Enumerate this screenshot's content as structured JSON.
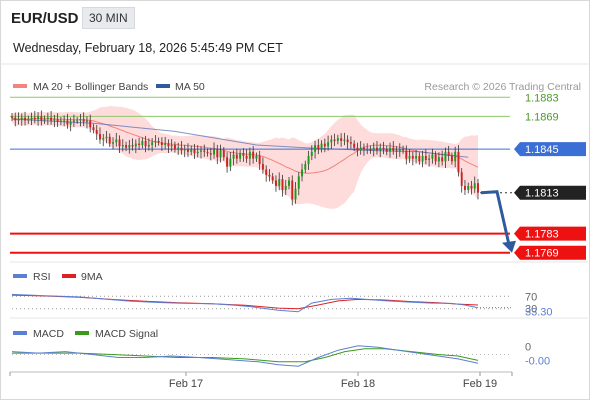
{
  "header": {
    "symbol": "EUR/USD",
    "timeframe": "30 MIN",
    "datetime": "Wednesday, February 18, 2026 5:45:49 PM CET"
  },
  "colors": {
    "bb_band": "#ffd0d0",
    "ma20": "#f4837d",
    "ma50": "#4a6ab0",
    "candle_up": "#1a9a1a",
    "candle_down": "#cc2222",
    "resistance": "#8dc86a",
    "current": "#3b6fd6",
    "support": "#ee1111",
    "rsi": "#5b7fd4",
    "rsi_ma": "#dd2222",
    "macd": "#5b7fd4",
    "macd_signal": "#3a9a1a",
    "arrow": "#2e5a9e"
  },
  "chart_data": [
    {
      "type": "candlestick",
      "title": "EUR/USD",
      "legend": [
        {
          "name": "MA 20 + Bollinger Bands",
          "color": "#f4837d"
        },
        {
          "name": "MA 50",
          "color": "#2e5a9e"
        }
      ],
      "watermark": "Research © 2026 Trading Central",
      "x_labels": [
        "Feb 17",
        "Feb 18",
        "Feb 19"
      ],
      "ylim": [
        1.176,
        1.1892
      ],
      "levels": [
        {
          "value": 1.1883,
          "label": "1.1883",
          "kind": "resistance"
        },
        {
          "value": 1.1869,
          "label": "1.1869",
          "kind": "resistance"
        },
        {
          "value": 1.1845,
          "label": "1.1845",
          "kind": "pivot"
        },
        {
          "value": 1.1813,
          "label": "1.1813",
          "kind": "last"
        },
        {
          "value": 1.1783,
          "label": "1.1783",
          "kind": "support"
        },
        {
          "value": 1.1769,
          "label": "1.1769",
          "kind": "support"
        }
      ],
      "close_series": [
        1.1868,
        1.1866,
        1.1867,
        1.1868,
        1.1866,
        1.1867,
        1.1868,
        1.1867,
        1.1869,
        1.1866,
        1.1867,
        1.1868,
        1.1866,
        1.1867,
        1.1865,
        1.1866,
        1.1866,
        1.1863,
        1.1865,
        1.1866,
        1.1866,
        1.1867,
        1.1865,
        1.1866,
        1.1861,
        1.1859,
        1.1856,
        1.1852,
        1.1853,
        1.1854,
        1.1849,
        1.185,
        1.1852,
        1.1847,
        1.1848,
        1.1846,
        1.1848,
        1.1847,
        1.1849,
        1.1848,
        1.1851,
        1.1847,
        1.1848,
        1.185,
        1.1851,
        1.185,
        1.1848,
        1.1849,
        1.1847,
        1.1848,
        1.1845,
        1.1846,
        1.1844,
        1.1845,
        1.1843,
        1.1845,
        1.1842,
        1.1843,
        1.1844,
        1.1843,
        1.1842,
        1.1841,
        1.1845,
        1.1839,
        1.1844,
        1.1839,
        1.1832,
        1.1838,
        1.1841,
        1.1838,
        1.1842,
        1.184,
        1.1838,
        1.1843,
        1.1838,
        1.184,
        1.1834,
        1.183,
        1.1826,
        1.1825,
        1.1822,
        1.1818,
        1.1823,
        1.1815,
        1.1818,
        1.1822,
        1.1808,
        1.1816,
        1.1825,
        1.183,
        1.1834,
        1.184,
        1.1843,
        1.1848,
        1.1845,
        1.1849,
        1.1847,
        1.185,
        1.1852,
        1.1851,
        1.1853,
        1.1851,
        1.1852,
        1.185,
        1.1849,
        1.1846,
        1.1844,
        1.1846,
        1.1845,
        1.1845,
        1.1844,
        1.1846,
        1.1844,
        1.1846,
        1.1845,
        1.1843,
        1.1846,
        1.1844,
        1.1843,
        1.1845,
        1.1844,
        1.1838,
        1.184,
        1.1838,
        1.184,
        1.1836,
        1.184,
        1.1837,
        1.1838,
        1.1841,
        1.1836,
        1.1839,
        1.1836,
        1.1843,
        1.184,
        1.1836,
        1.1843,
        1.1828,
        1.1818,
        1.1815,
        1.1818,
        1.1816,
        1.182,
        1.1813
      ],
      "ma50_points": [
        [
          0,
          1.1867
        ],
        [
          25,
          1.1864
        ],
        [
          50,
          1.1858
        ],
        [
          75,
          1.1848
        ],
        [
          90,
          1.1846
        ],
        [
          110,
          1.1844
        ],
        [
          125,
          1.1843
        ],
        [
          140,
          1.1839
        ]
      ]
    },
    {
      "type": "line",
      "title": "RSI",
      "legend": [
        {
          "name": "RSI",
          "color": "#5b7fd4"
        },
        {
          "name": "9MA",
          "color": "#dd2222"
        }
      ],
      "ylim": [
        0,
        100
      ],
      "levels": [
        70,
        30
      ],
      "tick_labels": [
        "70",
        "30"
      ],
      "current_label": "33.30",
      "rsi_points": [
        [
          0,
          76
        ],
        [
          10,
          72
        ],
        [
          20,
          68
        ],
        [
          28,
          61
        ],
        [
          36,
          54
        ],
        [
          44,
          50
        ],
        [
          52,
          47
        ],
        [
          60,
          46
        ],
        [
          66,
          42
        ],
        [
          72,
          36
        ],
        [
          80,
          25
        ],
        [
          86,
          20
        ],
        [
          90,
          48
        ],
        [
          96,
          60
        ],
        [
          102,
          64
        ],
        [
          110,
          57
        ],
        [
          118,
          52
        ],
        [
          126,
          48
        ],
        [
          132,
          47
        ],
        [
          136,
          42
        ],
        [
          140,
          33.3
        ]
      ],
      "ma_points": [
        [
          0,
          74
        ],
        [
          10,
          71
        ],
        [
          20,
          67
        ],
        [
          30,
          60
        ],
        [
          40,
          54
        ],
        [
          50,
          49
        ],
        [
          60,
          46
        ],
        [
          70,
          41
        ],
        [
          80,
          32
        ],
        [
          86,
          30
        ],
        [
          92,
          42
        ],
        [
          98,
          55
        ],
        [
          104,
          60
        ],
        [
          112,
          58
        ],
        [
          120,
          53
        ],
        [
          128,
          49
        ],
        [
          134,
          45
        ],
        [
          140,
          42
        ]
      ]
    },
    {
      "type": "line",
      "title": "MACD",
      "legend": [
        {
          "name": "MACD",
          "color": "#5b7fd4"
        },
        {
          "name": "MACD Signal",
          "color": "#3a9a1a"
        }
      ],
      "ylim": [
        -0.0012,
        0.001
      ],
      "levels": [
        0
      ],
      "tick_labels": [
        "0"
      ],
      "current_label": "-0.00",
      "macd_points": [
        [
          0,
          0.0002
        ],
        [
          8,
          0.0001
        ],
        [
          16,
          0.0002
        ],
        [
          24,
          0.0
        ],
        [
          32,
          -0.0002
        ],
        [
          40,
          -0.0002
        ],
        [
          48,
          -0.0001
        ],
        [
          56,
          -0.0002
        ],
        [
          62,
          -0.0003
        ],
        [
          68,
          -0.0004
        ],
        [
          74,
          -0.0005
        ],
        [
          80,
          -0.0007
        ],
        [
          86,
          -0.0008
        ],
        [
          92,
          -0.0002
        ],
        [
          98,
          0.0003
        ],
        [
          104,
          0.0006
        ],
        [
          110,
          0.0005
        ],
        [
          116,
          0.0003
        ],
        [
          122,
          0.0001
        ],
        [
          128,
          -0.0001
        ],
        [
          134,
          -0.0003
        ],
        [
          140,
          -0.0006
        ]
      ],
      "signal_points": [
        [
          0,
          0.0001
        ],
        [
          10,
          0.0001
        ],
        [
          20,
          0.0001
        ],
        [
          30,
          0.0
        ],
        [
          40,
          -0.0001
        ],
        [
          50,
          -0.0002
        ],
        [
          60,
          -0.0002
        ],
        [
          70,
          -0.0003
        ],
        [
          80,
          -0.0005
        ],
        [
          88,
          -0.0005
        ],
        [
          94,
          -0.0002
        ],
        [
          100,
          0.0002
        ],
        [
          106,
          0.0004
        ],
        [
          112,
          0.0004
        ],
        [
          120,
          0.0002
        ],
        [
          128,
          0.0
        ],
        [
          134,
          -0.0001
        ],
        [
          140,
          -0.0004
        ]
      ]
    }
  ]
}
